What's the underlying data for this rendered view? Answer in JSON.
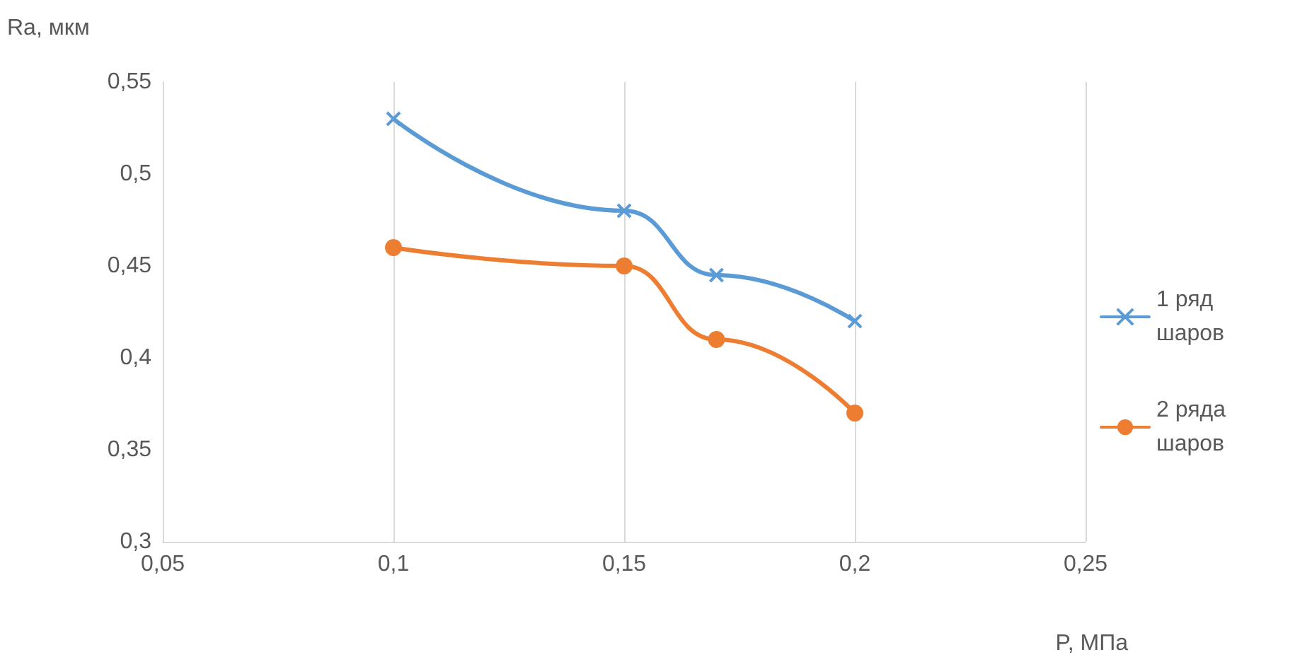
{
  "chart_data": {
    "type": "line",
    "xlabel": "P, МПа",
    "ylabel": "Ra, мкм",
    "x": [
      0.1,
      0.15,
      0.17,
      0.2
    ],
    "series": [
      {
        "name": "1 ряд шаров",
        "color": "#5b9bd5",
        "marker": "cross",
        "values": [
          0.53,
          0.48,
          0.445,
          0.42
        ]
      },
      {
        "name": "2 ряда шаров",
        "color": "#ed7d31",
        "marker": "circle",
        "values": [
          0.46,
          0.45,
          0.41,
          0.37
        ]
      }
    ],
    "xlim": [
      0.05,
      0.25
    ],
    "xticks": [
      {
        "value": 0.05,
        "label": "0,05"
      },
      {
        "value": 0.1,
        "label": "0,1"
      },
      {
        "value": 0.15,
        "label": "0,15"
      },
      {
        "value": 0.2,
        "label": "0,2"
      },
      {
        "value": 0.25,
        "label": "0,25"
      }
    ],
    "ylim": [
      0.3,
      0.55
    ],
    "yticks": [
      {
        "value": 0.3,
        "label": "0,3"
      },
      {
        "value": 0.35,
        "label": "0,35"
      },
      {
        "value": 0.4,
        "label": "0,4"
      },
      {
        "value": 0.45,
        "label": "0,45"
      },
      {
        "value": 0.5,
        "label": "0,5"
      },
      {
        "value": 0.55,
        "label": "0,55"
      }
    ],
    "grid": "x",
    "legend": "right",
    "line_style": "solid"
  }
}
